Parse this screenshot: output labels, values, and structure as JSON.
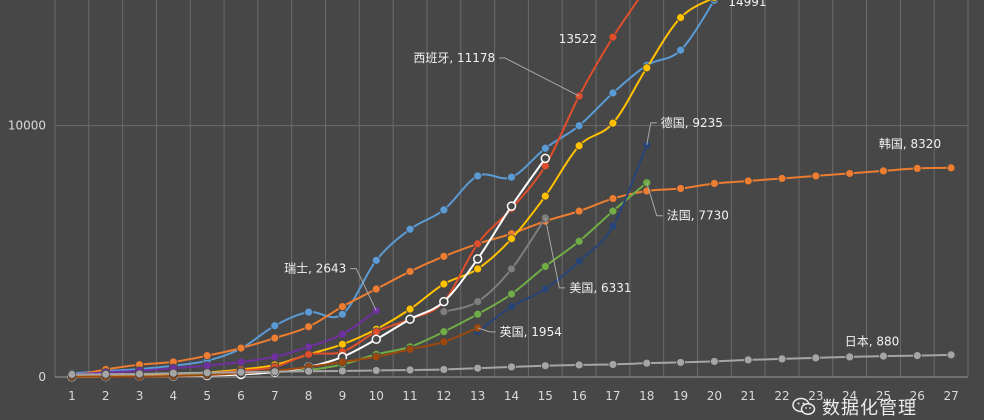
{
  "chart_data": {
    "type": "line",
    "title": "",
    "xlabel": "",
    "ylabel": "",
    "x": [
      1,
      2,
      3,
      4,
      5,
      6,
      7,
      8,
      9,
      10,
      11,
      12,
      13,
      14,
      15,
      16,
      17,
      18,
      19,
      20,
      21,
      22,
      23,
      24,
      25,
      26,
      27
    ],
    "x_ticks": [
      "1",
      "2",
      "3",
      "4",
      "5",
      "6",
      "7",
      "8",
      "9",
      "10",
      "11",
      "12",
      "13",
      "14",
      "15",
      "16",
      "17",
      "18",
      "19",
      "20",
      "21",
      "22",
      "23",
      "24",
      "25",
      "26",
      "27"
    ],
    "ylim": [
      0,
      15000
    ],
    "y_ticks": [
      0,
      10000
    ],
    "y_tick_labels": [
      "0",
      "10000"
    ],
    "grid": "vertical",
    "series": [
      {
        "color": "#5b9bd5",
        "values": [
          150,
          230,
          320,
          450,
          650,
          1130,
          2040,
          2580,
          2500,
          4640,
          5880,
          6650,
          8000,
          7950,
          9100,
          10000,
          11300,
          12400,
          13000,
          14991,
          null,
          null,
          null,
          null,
          null,
          null,
          null
        ]
      },
      {
        "color": "#ed7d31",
        "values": [
          30,
          300,
          490,
          600,
          850,
          1150,
          1550,
          2000,
          2800,
          3500,
          4200,
          4800,
          5300,
          5700,
          6200,
          6600,
          7100,
          7400,
          7500,
          7700,
          7800,
          7900,
          8000,
          8100,
          8200,
          8300,
          8320
        ]
      },
      {
        "color": "#ffc000",
        "values": [
          10,
          30,
          50,
          100,
          180,
          300,
          480,
          900,
          1300,
          1900,
          2700,
          3700,
          4300,
          5500,
          7200,
          9200,
          10100,
          12300,
          14300,
          15100,
          null,
          null,
          null,
          null,
          null,
          null,
          null
        ]
      },
      {
        "color": "#e04e2b",
        "values": [
          10,
          15,
          30,
          60,
          150,
          250,
          400,
          900,
          1000,
          1800,
          2300,
          3000,
          5300,
          6700,
          8400,
          11178,
          13522,
          15500,
          null,
          null,
          null,
          null,
          null,
          null,
          null,
          null,
          null
        ]
      },
      {
        "color": "#70ad47",
        "values": [
          10,
          15,
          30,
          50,
          100,
          150,
          200,
          280,
          500,
          900,
          1200,
          1800,
          2500,
          3300,
          4400,
          5400,
          6600,
          7730,
          null,
          null,
          null,
          null,
          null,
          null,
          null,
          null,
          null
        ]
      },
      {
        "color": "#264478",
        "values": [
          null,
          null,
          null,
          null,
          null,
          null,
          null,
          null,
          null,
          null,
          null,
          null,
          1800,
          2800,
          3500,
          4600,
          6000,
          9235,
          null,
          null,
          null,
          null,
          null,
          null,
          null,
          null,
          null
        ]
      },
      {
        "color": "#7e7e7e",
        "values": [
          null,
          null,
          null,
          null,
          null,
          null,
          null,
          null,
          null,
          null,
          null,
          2600,
          3000,
          4300,
          6331,
          null,
          null,
          null,
          null,
          null,
          null,
          null,
          null,
          null,
          null,
          null,
          null
        ]
      },
      {
        "color": "#ffffff",
        "values": [
          10,
          20,
          30,
          40,
          60,
          100,
          200,
          400,
          800,
          1500,
          2300,
          3000,
          4700,
          6800,
          8700,
          null,
          null,
          null,
          null,
          null,
          null,
          null,
          null,
          null,
          null,
          null,
          null
        ]
      },
      {
        "color": "#9e480e",
        "values": [
          10,
          15,
          20,
          40,
          80,
          150,
          250,
          400,
          600,
          800,
          1100,
          1400,
          1954,
          null,
          null,
          null,
          null,
          null,
          null,
          null,
          null,
          null,
          null,
          null,
          null,
          null,
          null
        ]
      },
      {
        "color": "#7030a0",
        "values": [
          100,
          180,
          250,
          350,
          450,
          600,
          800,
          1200,
          1700,
          2643,
          null,
          null,
          null,
          null,
          null,
          null,
          null,
          null,
          null,
          null,
          null,
          null,
          null,
          null,
          null,
          null,
          null
        ]
      },
      {
        "color": "#a5a5a5",
        "values": [
          100,
          110,
          120,
          150,
          170,
          190,
          210,
          230,
          240,
          260,
          280,
          300,
          350,
          400,
          450,
          480,
          500,
          550,
          580,
          620,
          680,
          720,
          760,
          800,
          830,
          850,
          880
        ]
      }
    ],
    "annotations": [
      {
        "text": "14991",
        "series": 0,
        "x": 20
      },
      {
        "text": "13522",
        "series": 3,
        "x": 17
      },
      {
        "text": "西班牙, 11178",
        "series": 3,
        "x": 16
      },
      {
        "text": "德国, 9235",
        "series": 5,
        "x": 18
      },
      {
        "text": "韩国, 8320",
        "series": 1,
        "x": 27
      },
      {
        "text": "法国, 7730",
        "series": 4,
        "x": 18
      },
      {
        "text": "美国, 6331",
        "series": 6,
        "x": 15
      },
      {
        "text": "瑞士, 2643",
        "series": 9,
        "x": 10
      },
      {
        "text": "英国, 1954",
        "series": 8,
        "x": 13
      },
      {
        "text": "日本, 880",
        "series": 10,
        "x": 26
      }
    ]
  },
  "watermark": {
    "text": "数据化管理",
    "icon": "wechat-icon"
  }
}
